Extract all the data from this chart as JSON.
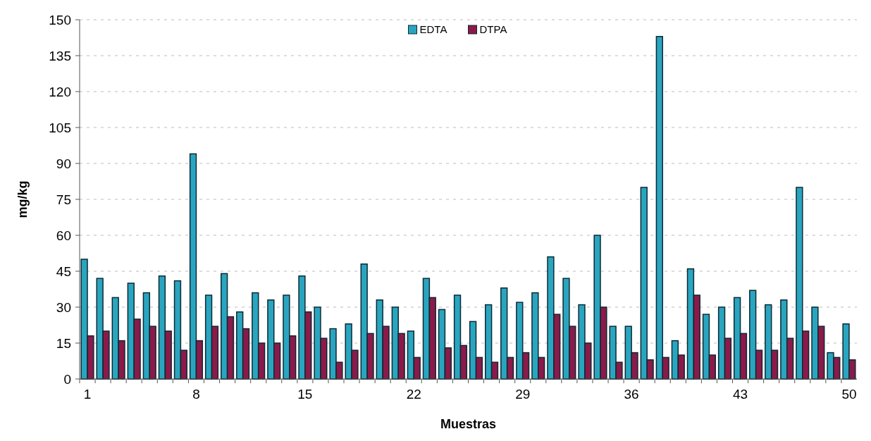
{
  "chart_data": {
    "type": "bar",
    "xlabel": "Muestras",
    "ylabel": "mg/kg",
    "categories": [
      "1",
      null,
      null,
      null,
      null,
      null,
      null,
      "8",
      null,
      null,
      null,
      null,
      null,
      null,
      "15",
      null,
      null,
      null,
      null,
      null,
      null,
      "22",
      null,
      null,
      null,
      null,
      null,
      null,
      "29",
      null,
      null,
      null,
      null,
      null,
      null,
      "36",
      null,
      null,
      null,
      null,
      null,
      null,
      "43",
      null,
      null,
      null,
      null,
      null,
      null,
      "50"
    ],
    "series": [
      {
        "name": "EDTA",
        "color": "#2aa5c0",
        "values": [
          50,
          42,
          34,
          40,
          36,
          43,
          41,
          94,
          35,
          44,
          28,
          36,
          33,
          35,
          43,
          30,
          21,
          23,
          48,
          33,
          30,
          20,
          42,
          29,
          35,
          24,
          31,
          38,
          32,
          36,
          51,
          42,
          31,
          60,
          22,
          22,
          80,
          143,
          16,
          46,
          27,
          30,
          34,
          37,
          31,
          33,
          80,
          30,
          11,
          23
        ]
      },
      {
        "name": "DTPA",
        "color": "#8b1a4a",
        "values": [
          18,
          20,
          16,
          25,
          22,
          20,
          12,
          16,
          22,
          26,
          21,
          15,
          15,
          18,
          28,
          17,
          7,
          12,
          19,
          22,
          19,
          9,
          34,
          13,
          14,
          9,
          7,
          9,
          11,
          9,
          27,
          22,
          15,
          30,
          7,
          11,
          8,
          9,
          10,
          35,
          10,
          17,
          19,
          12,
          12,
          17,
          20,
          22,
          9,
          8
        ]
      }
    ],
    "ylim": [
      0,
      150
    ],
    "yticks": [
      0,
      15,
      30,
      45,
      60,
      75,
      90,
      105,
      120,
      135,
      150
    ],
    "grid": "y",
    "legend": "top"
  }
}
